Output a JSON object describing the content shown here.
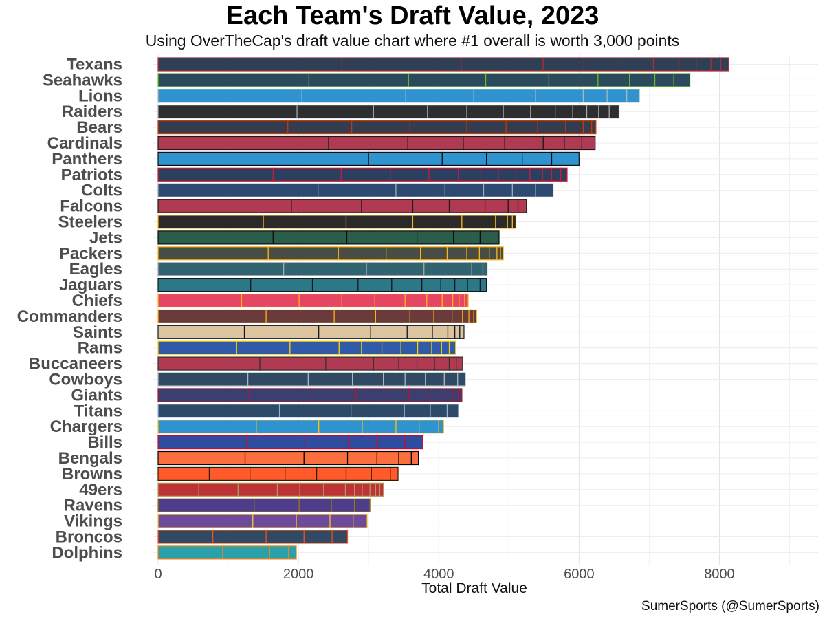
{
  "title": "Each Team's Draft Value, 2023",
  "subtitle": "Using OverTheCap's draft value chart where #1 overall is worth 3,000 points",
  "caption": "SumerSports (@SumerSports)",
  "chart_data": {
    "type": "bar",
    "orientation": "horizontal",
    "stacked": true,
    "xlabel": "Total Draft Value",
    "ylabel": "",
    "xlim": [
      0,
      9000
    ],
    "xticks": [
      0,
      2000,
      4000,
      6000,
      8000
    ],
    "teams": [
      {
        "name": "Texans",
        "fill": "#2f4054",
        "border": "#b5283f",
        "picks": [
          2620,
          1700,
          1170,
          580,
          530,
          460,
          360,
          250,
          210,
          140,
          110
        ]
      },
      {
        "name": "Seahawks",
        "fill": "#2c4a5e",
        "border": "#69be28",
        "picks": [
          2150,
          1420,
          1100,
          900,
          700,
          450,
          360,
          270,
          230
        ]
      },
      {
        "name": "Lions",
        "fill": "#2f93d0",
        "border": "#b0b7bc",
        "picks": [
          2050,
          1480,
          970,
          880,
          680,
          340,
          280,
          180
        ]
      },
      {
        "name": "Raiders",
        "fill": "#2e2e2e",
        "border": "#a5acaf",
        "picks": [
          1980,
          1090,
          770,
          560,
          520,
          390,
          350,
          250,
          200,
          170,
          150,
          140
        ]
      },
      {
        "name": "Bears",
        "fill": "#333d4f",
        "border": "#c83803",
        "picks": [
          1850,
          910,
          830,
          810,
          560,
          450,
          400,
          250,
          120,
          60
        ]
      },
      {
        "name": "Cardinals",
        "fill": "#b03a52",
        "border": "#1a1a1a",
        "picks": [
          2430,
          1130,
          790,
          590,
          550,
          300,
          250,
          190
        ]
      },
      {
        "name": "Panthers",
        "fill": "#2f93d0",
        "border": "#0f0f0f",
        "picks": [
          3000,
          1050,
          630,
          510,
          420,
          390
        ]
      },
      {
        "name": "Patriots",
        "fill": "#2c3f5e",
        "border": "#c41e3a",
        "picks": [
          1640,
          970,
          700,
          550,
          420,
          320,
          250,
          250,
          200,
          180,
          130,
          130,
          90
        ]
      },
      {
        "name": "Colts",
        "fill": "#2c4a72",
        "border": "#a2aaad",
        "picks": [
          2280,
          1110,
          700,
          550,
          410,
          330,
          250
        ]
      },
      {
        "name": "Falcons",
        "fill": "#b03a52",
        "border": "#1a1a1a",
        "picks": [
          1900,
          1000,
          730,
          520,
          510,
          330,
          140,
          120
        ]
      },
      {
        "name": "Steelers",
        "fill": "#2a2a2a",
        "border": "#ffb612",
        "picks": [
          1500,
          1180,
          950,
          700,
          480,
          170,
          70,
          50
        ]
      },
      {
        "name": "Jets",
        "fill": "#2b5e4a",
        "border": "#0d0d0d",
        "picks": [
          1640,
          1050,
          1000,
          520,
          380,
          270
        ]
      },
      {
        "name": "Packers",
        "fill": "#474d45",
        "border": "#ffb612",
        "picks": [
          1570,
          1000,
          680,
          490,
          380,
          280,
          180,
          140,
          110,
          50,
          40
        ]
      },
      {
        "name": "Eagles",
        "fill": "#2f6470",
        "border": "#a5acaf",
        "picks": [
          1790,
          1180,
          820,
          680,
          160,
          60
        ]
      },
      {
        "name": "Jaguars",
        "fill": "#2d7887",
        "border": "#101820",
        "picks": [
          1320,
          880,
          650,
          480,
          430,
          270,
          200,
          180,
          180,
          90
        ]
      },
      {
        "name": "Chiefs",
        "fill": "#e64662",
        "border": "#ffb81c",
        "picks": [
          1190,
          820,
          610,
          470,
          430,
          310,
          220,
          150,
          90,
          80,
          50
        ]
      },
      {
        "name": "Commanders",
        "fill": "#6a3b3b",
        "border": "#ffb612",
        "picks": [
          1540,
          970,
          590,
          490,
          340,
          260,
          150,
          90,
          70,
          40
        ]
      },
      {
        "name": "Saints",
        "fill": "#dcc49e",
        "border": "#101820",
        "picks": [
          1230,
          1060,
          740,
          520,
          360,
          220,
          100,
          70,
          60
        ]
      },
      {
        "name": "Rams",
        "fill": "#315aa8",
        "border": "#ffd100",
        "picks": [
          1120,
          760,
          700,
          320,
          290,
          270,
          240,
          200,
          140,
          110,
          90
        ]
      },
      {
        "name": "Buccaneers",
        "fill": "#b03a52",
        "border": "#34302b",
        "picks": [
          1450,
          940,
          680,
          360,
          260,
          250,
          210,
          100,
          90
        ]
      },
      {
        "name": "Cowboys",
        "fill": "#314a63",
        "border": "#b0b7bc",
        "picks": [
          1280,
          860,
          630,
          440,
          310,
          290,
          270,
          190,
          110
        ]
      },
      {
        "name": "Giants",
        "fill": "#3a3f72",
        "border": "#a71930",
        "picks": [
          1300,
          880,
          640,
          430,
          330,
          270,
          210,
          150,
          70,
          50
        ]
      },
      {
        "name": "Titans",
        "fill": "#2f4a66",
        "border": "#8fb6d9",
        "picks": [
          1730,
          1020,
          760,
          370,
          240,
          160
        ]
      },
      {
        "name": "Chargers",
        "fill": "#2f93d0",
        "border": "#ffc20e",
        "picks": [
          1400,
          890,
          620,
          480,
          330,
          280,
          70
        ]
      },
      {
        "name": "Bills",
        "fill": "#2f4da0",
        "border": "#c60c30",
        "picks": [
          1260,
          830,
          620,
          420,
          390,
          250
        ]
      },
      {
        "name": "Bengals",
        "fill": "#fb6e3d",
        "border": "#000000",
        "picks": [
          1240,
          840,
          620,
          420,
          310,
          180,
          100
        ]
      },
      {
        "name": "Browns",
        "fill": "#fe5a2b",
        "border": "#311d00",
        "picks": [
          730,
          580,
          500,
          450,
          420,
          360,
          270,
          110
        ]
      },
      {
        "name": "49ers",
        "fill": "#bd3335",
        "border": "#b3995d",
        "picks": [
          580,
          560,
          560,
          320,
          340,
          310,
          130,
          110,
          110,
          80,
          60,
          50
        ]
      },
      {
        "name": "Ravens",
        "fill": "#4d3d8a",
        "border": "#9e7c0c",
        "picks": [
          1370,
          640,
          460,
          330,
          220
        ]
      },
      {
        "name": "Vikings",
        "fill": "#6e4a9a",
        "border": "#ffc62f",
        "picks": [
          1350,
          620,
          480,
          330,
          200
        ]
      },
      {
        "name": "Broncos",
        "fill": "#314a63",
        "border": "#fb4f14",
        "picks": [
          780,
          760,
          540,
          400,
          220
        ]
      },
      {
        "name": "Dolphins",
        "fill": "#2aa1a8",
        "border": "#f58220",
        "picks": [
          920,
          670,
          270,
          110
        ]
      }
    ]
  }
}
